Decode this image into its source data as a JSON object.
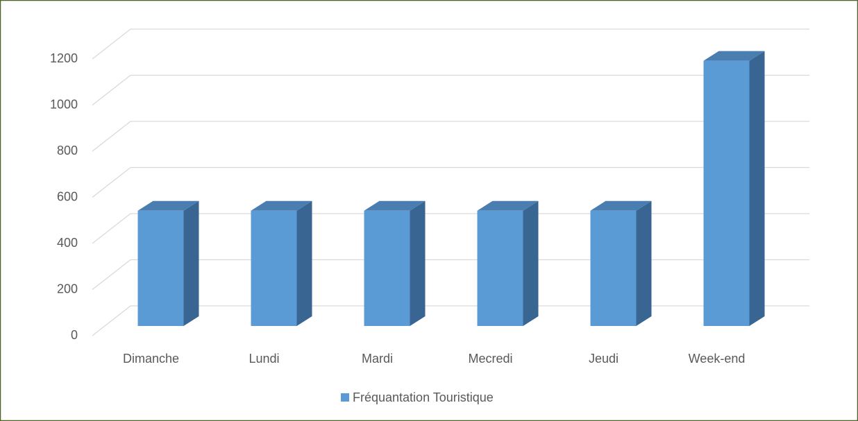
{
  "chart_data": {
    "type": "bar3d",
    "categories": [
      "Dimanche",
      "Lundi",
      "Mardi",
      "Mecredi",
      "Jeudi",
      "Week-end"
    ],
    "series": [
      {
        "name": "Fréquantation Touristique",
        "color": "#5b9bd5",
        "values": [
          500,
          500,
          500,
          500,
          500,
          1150
        ]
      }
    ],
    "ylim": [
      0,
      1200
    ],
    "yticks": [
      0,
      200,
      400,
      600,
      800,
      1000,
      1200
    ],
    "grid": true,
    "legend": "bottom"
  }
}
